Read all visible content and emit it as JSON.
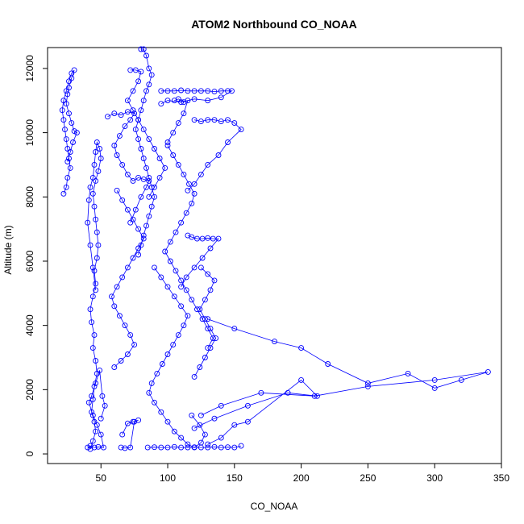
{
  "chart_data": {
    "type": "scatter",
    "title": "ATOM2 Northbound CO_NOAA",
    "xlabel": "CO_NOAA",
    "ylabel": "Altitude (m)",
    "xlim": [
      10,
      350
    ],
    "ylim": [
      -300,
      12650
    ],
    "xticks": [
      50,
      100,
      150,
      200,
      250,
      300,
      350
    ],
    "yticks": [
      0,
      2000,
      4000,
      6000,
      8000,
      10000,
      12000
    ],
    "grid": false,
    "legend": "none",
    "color": "#0000ff",
    "series": [
      {
        "mode": "lines+markers",
        "x": [
          42,
          44,
          46,
          45,
          43,
          44,
          45,
          47,
          46,
          44,
          45,
          43,
          42,
          44,
          46,
          45,
          47,
          48,
          47,
          46,
          45,
          44,
          46,
          48,
          50,
          49,
          47,
          46,
          45,
          44,
          42,
          41,
          40,
          42,
          44,
          46
        ],
        "y": [
          150,
          400,
          700,
          1000,
          1300,
          1700,
          2100,
          2500,
          2900,
          3300,
          3700,
          4100,
          4500,
          4900,
          5300,
          5700,
          6100,
          6500,
          6900,
          7300,
          7700,
          8100,
          8500,
          8800,
          9200,
          9500,
          9700,
          9400,
          9000,
          8600,
          8300,
          7900,
          7200,
          6500,
          5800,
          5100
        ]
      },
      {
        "mode": "lines+markers",
        "x": [
          22,
          24,
          25,
          27,
          26,
          25,
          24,
          23,
          22,
          21,
          22,
          24,
          26,
          28,
          30,
          28,
          26,
          25,
          24,
          26,
          28,
          30,
          32,
          29,
          27,
          25
        ],
        "y": [
          8100,
          8300,
          8600,
          8900,
          9200,
          9500,
          9800,
          10100,
          10400,
          10700,
          11000,
          11300,
          11600,
          11850,
          11950,
          11700,
          11400,
          11200,
          10900,
          10600,
          10300,
          10050,
          10000,
          9700,
          9400,
          9100
        ]
      },
      {
        "mode": "lines+markers",
        "x": [
          40,
          42,
          45,
          48,
          52,
          50,
          47,
          44,
          41,
          43,
          46,
          49,
          51,
          53,
          50
        ],
        "y": [
          200,
          250,
          200,
          220,
          200,
          600,
          900,
          1200,
          1600,
          1800,
          2200,
          2600,
          1800,
          1500,
          1100
        ]
      },
      {
        "mode": "lines+markers",
        "x": [
          55,
          60,
          65,
          70,
          75,
          72,
          68,
          64,
          60,
          62,
          66,
          70,
          74,
          78,
          82,
          86,
          84,
          80,
          76,
          72
        ],
        "y": [
          10500,
          10600,
          10550,
          10650,
          10600,
          10400,
          10200,
          9900,
          9600,
          9300,
          9000,
          8700,
          8500,
          8600,
          8550,
          8500,
          8300,
          8000,
          7600,
          7200
        ]
      },
      {
        "mode": "lines+markers",
        "x": [
          80,
          82,
          84,
          86,
          88,
          86,
          84,
          82,
          80,
          78,
          76,
          78,
          80,
          82,
          84,
          86,
          88,
          90,
          88,
          86,
          84,
          82,
          80,
          78
        ],
        "y": [
          12600,
          12600,
          12400,
          12000,
          11800,
          11500,
          11300,
          11000,
          10700,
          10400,
          10100,
          9800,
          9500,
          9200,
          8900,
          8600,
          8300,
          8000,
          7700,
          7400,
          7100,
          6800,
          6500,
          6200
        ]
      },
      {
        "mode": "lines+markers",
        "x": [
          95,
          100,
          105,
          110,
          115,
          120,
          125,
          130,
          135,
          140,
          145,
          148,
          140,
          130,
          120,
          110,
          100,
          95
        ],
        "y": [
          11300,
          11300,
          11300,
          11320,
          11300,
          11300,
          11300,
          11300,
          11280,
          11300,
          11300,
          11300,
          11100,
          11000,
          11050,
          10950,
          11000,
          10900
        ]
      },
      {
        "mode": "lines+markers",
        "x": [
          120,
          125,
          130,
          135,
          140,
          145,
          150,
          155,
          145,
          138,
          130,
          125,
          120,
          115
        ],
        "y": [
          10400,
          10350,
          10400,
          10400,
          10350,
          10400,
          10300,
          10100,
          9700,
          9300,
          9000,
          8700,
          8400,
          8200
        ]
      },
      {
        "mode": "lines+markers",
        "x": [
          115,
          118,
          122,
          126,
          130,
          134,
          138,
          132,
          126,
          120,
          114,
          110
        ],
        "y": [
          6800,
          6750,
          6700,
          6700,
          6720,
          6700,
          6700,
          6400,
          6100,
          5800,
          5500,
          5200
        ]
      },
      {
        "mode": "lines+markers",
        "x": [
          130,
          150,
          180,
          200,
          220,
          250,
          280,
          300,
          320,
          340,
          300,
          250,
          210,
          170,
          140,
          125
        ],
        "y": [
          4200,
          3900,
          3500,
          3300,
          2800,
          2200,
          2500,
          2050,
          2300,
          2550,
          2300,
          2100,
          1800,
          1900,
          1500,
          1200
        ]
      },
      {
        "mode": "lines+markers",
        "x": [
          120,
          135,
          160,
          190,
          212,
          200,
          160,
          150,
          140,
          130
        ],
        "y": [
          800,
          1100,
          1500,
          1900,
          1800,
          2300,
          1000,
          900,
          500,
          300
        ]
      },
      {
        "mode": "lines+markers",
        "x": [
          85,
          90,
          95,
          100,
          105,
          110,
          115,
          120,
          125,
          130,
          135,
          140,
          145,
          150,
          155
        ],
        "y": [
          200,
          210,
          200,
          200,
          220,
          200,
          200,
          210,
          200,
          200,
          220,
          200,
          210,
          200,
          250
        ]
      },
      {
        "mode": "lines+markers",
        "x": [
          65,
          68,
          72,
          75,
          78,
          74,
          70,
          66
        ],
        "y": [
          200,
          180,
          200,
          1000,
          1050,
          1000,
          950,
          600
        ]
      },
      {
        "mode": "lines+markers",
        "x": [
          90,
          95,
          100,
          105,
          110,
          115,
          112,
          108,
          104,
          100,
          96,
          92,
          88,
          86,
          90,
          95,
          100,
          105,
          110,
          115,
          120,
          125,
          128,
          124,
          118
        ],
        "y": [
          5800,
          5500,
          5200,
          4900,
          4600,
          4300,
          4000,
          3700,
          3400,
          3100,
          2800,
          2500,
          2200,
          1900,
          1600,
          1300,
          1000,
          700,
          500,
          300,
          200,
          350,
          600,
          900,
          1200
        ]
      },
      {
        "mode": "lines+markers",
        "x": [
          60,
          65,
          70,
          75,
          72,
          68,
          64,
          60,
          58,
          62,
          66,
          70,
          74,
          78,
          82,
          78,
          74,
          70,
          66,
          62
        ],
        "y": [
          2700,
          2900,
          3100,
          3400,
          3700,
          4000,
          4300,
          4600,
          4900,
          5200,
          5500,
          5800,
          6100,
          6400,
          6700,
          7000,
          7300,
          7600,
          7900,
          8200
        ]
      },
      {
        "mode": "lines+markers",
        "x": [
          100,
          104,
          108,
          112,
          116,
          120,
          118,
          114,
          110,
          106,
          102,
          98,
          102,
          106,
          110,
          114,
          118,
          122,
          126,
          130,
          134,
          130
        ],
        "y": [
          9600,
          9300,
          9000,
          8700,
          8400,
          8100,
          7800,
          7500,
          7200,
          6900,
          6600,
          6300,
          6000,
          5700,
          5400,
          5100,
          4800,
          4500,
          4200,
          3900,
          3600,
          3300
        ]
      },
      {
        "mode": "lines+markers",
        "x": [
          105,
          108,
          112,
          115,
          112,
          108,
          104,
          100
        ],
        "y": [
          11000,
          11050,
          10950,
          11000,
          10600,
          10300,
          10000,
          9700
        ]
      },
      {
        "mode": "lines+markers",
        "x": [
          125,
          130,
          135,
          132,
          128,
          124,
          128,
          132,
          136,
          132,
          128,
          124,
          120
        ],
        "y": [
          5800,
          5600,
          5400,
          5100,
          4800,
          4500,
          4200,
          3900,
          3600,
          3300,
          3000,
          2700,
          2400
        ]
      },
      {
        "mode": "lines+markers",
        "x": [
          72,
          76,
          80,
          78,
          74,
          70,
          74,
          78,
          82,
          86,
          90,
          94,
          98,
          94,
          90,
          86
        ],
        "y": [
          11950,
          11950,
          11900,
          11600,
          11300,
          11000,
          10700,
          10400,
          10100,
          9800,
          9500,
          9200,
          8900,
          8600,
          8300,
          8000
        ]
      }
    ]
  }
}
